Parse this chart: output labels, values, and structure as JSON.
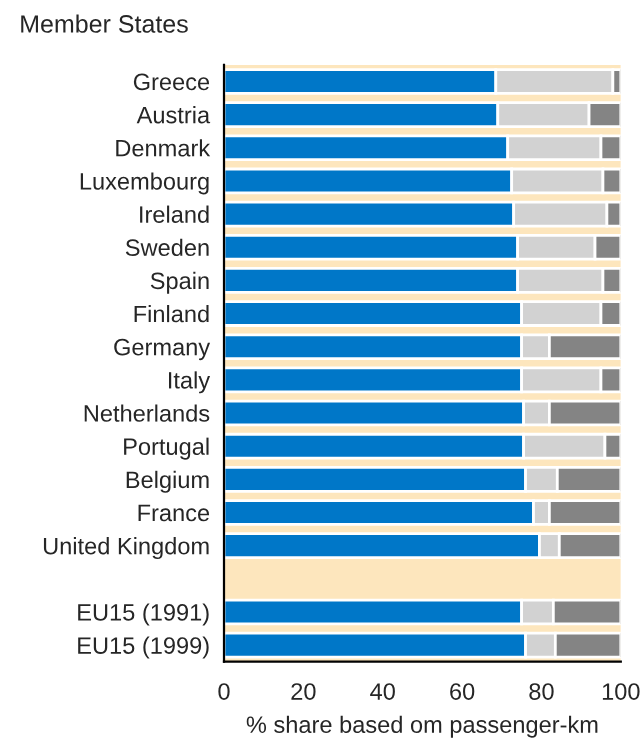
{
  "chart_data": {
    "type": "bar",
    "orientation": "horizontal",
    "stacked": true,
    "title": "Member States",
    "xlabel": "% share based om passenger-km",
    "categories": [
      "Greece",
      "Austria",
      "Denmark",
      "Luxembourg",
      "Ireland",
      "Sweden",
      "Spain",
      "Finland",
      "Germany",
      "Italy",
      "Netherlands",
      "Portugal",
      "Belgium",
      "France",
      "United Kingdom",
      null,
      "EU15 (1991)",
      "EU15 (1999)"
    ],
    "series": [
      {
        "color": "#0077c8",
        "values": [
          68.5,
          69,
          71.5,
          72.5,
          73,
          74,
          74,
          75,
          75,
          75,
          75.5,
          75.5,
          76,
          78,
          79.5,
          null,
          75,
          76
        ]
      },
      {
        "color": "#d2d2d2",
        "values": [
          29.5,
          23,
          23.5,
          23,
          23.5,
          19.5,
          21.5,
          20,
          7,
          20,
          6.5,
          20.5,
          8,
          4,
          5,
          null,
          8,
          7.5
        ]
      },
      {
        "color": "#848484",
        "values": [
          2,
          8,
          5,
          4.5,
          3.5,
          6.5,
          4.5,
          5,
          18,
          5,
          18,
          4,
          16,
          18,
          15.5,
          null,
          17,
          16.5
        ]
      }
    ],
    "bands": [
      {
        "axis": "x",
        "from": 0,
        "to": 100,
        "color": "#fde6bd"
      }
    ],
    "xlim": [
      0,
      100
    ],
    "xticks": [
      0,
      20,
      40,
      60,
      80,
      100
    ],
    "grid": false,
    "legend": false
  }
}
